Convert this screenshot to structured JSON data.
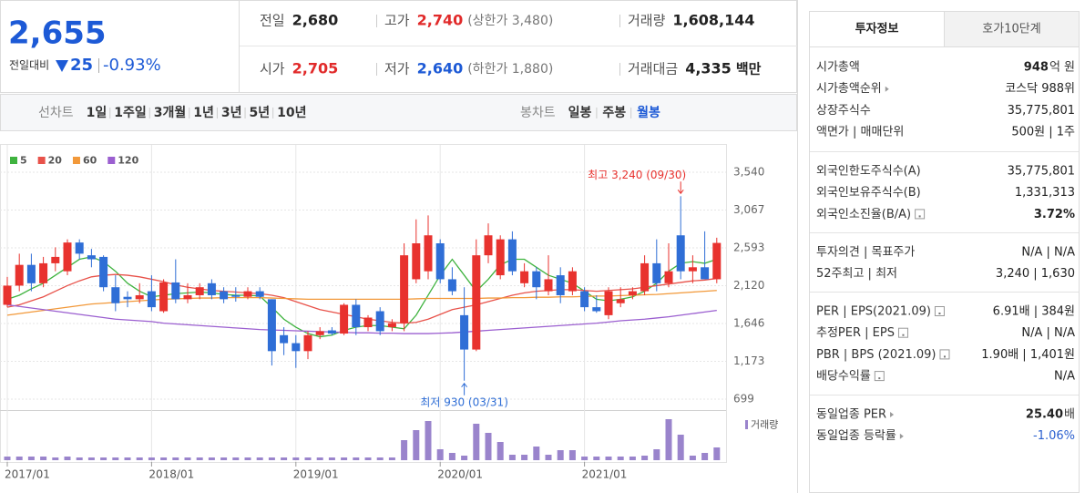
{
  "header": {
    "price": "2,655",
    "change_label": "전일대비",
    "change": "25",
    "change_rate": "-0.93%",
    "stats": [
      [
        {
          "label": "전일",
          "value": "2,680"
        },
        {
          "label": "고가",
          "value": "2,740",
          "sub": "(상한가 3,480)",
          "color": "#e12a2a"
        },
        {
          "label": "거래량",
          "value": "1,608,144"
        }
      ],
      [
        {
          "label": "시가",
          "value": "2,705",
          "color": "#e12a2a"
        },
        {
          "label": "저가",
          "value": "2,640",
          "sub": "(하한가 1,880)",
          "color": "#1d5ad6"
        },
        {
          "label": "거래대금",
          "value": "4,335",
          "unit": "백만"
        }
      ]
    ]
  },
  "toolbar": {
    "line_label": "선차트",
    "line_options": [
      "1일",
      "1주일",
      "3개월",
      "1년",
      "3년",
      "5년",
      "10년"
    ],
    "candle_label": "봉차트",
    "candle_options": [
      "일봉",
      "주봉",
      "월봉"
    ],
    "candle_active": 2
  },
  "chart_data": {
    "type": "candlestick",
    "x": [
      "2017/01",
      null,
      null,
      null,
      null,
      null,
      null,
      null,
      null,
      null,
      null,
      null,
      "2018/01",
      null,
      null,
      null,
      null,
      null,
      null,
      null,
      null,
      null,
      null,
      null,
      "2019/01",
      null,
      null,
      null,
      null,
      null,
      null,
      null,
      null,
      null,
      null,
      null,
      "2020/01",
      null,
      null,
      null,
      null,
      null,
      null,
      null,
      null,
      null,
      null,
      null,
      "2021/01",
      null,
      null,
      null,
      null,
      null,
      null,
      null,
      null,
      null,
      null,
      null
    ],
    "open": [
      1880,
      2120,
      2380,
      2150,
      2400,
      2300,
      2660,
      2500,
      2480,
      2100,
      1980,
      1950,
      2050,
      1800,
      2160,
      1950,
      2000,
      2150,
      2050,
      2000,
      1980,
      2050,
      1950,
      1500,
      1400,
      1300,
      1500,
      1560,
      1520,
      1880,
      1600,
      1800,
      1600,
      1650,
      2200,
      2300,
      2650,
      2200,
      1750,
      1320,
      2500,
      2250,
      2700,
      2150,
      2300,
      2050,
      2250,
      2050,
      2050,
      1850,
      1750,
      1900,
      2000,
      2050,
      2400,
      2150,
      2750,
      2300,
      2350,
      2200
    ],
    "high": [
      2230,
      2520,
      2520,
      2480,
      2600,
      2700,
      2700,
      2580,
      2500,
      2250,
      2050,
      2150,
      2250,
      2200,
      2450,
      2150,
      2150,
      2200,
      2100,
      2100,
      2100,
      2100,
      1950,
      1600,
      1500,
      1550,
      1600,
      1600,
      1900,
      1950,
      1750,
      1850,
      1700,
      2650,
      2950,
      3000,
      2700,
      2350,
      2100,
      2700,
      2900,
      2750,
      2800,
      2400,
      2350,
      2500,
      2350,
      2350,
      2100,
      2000,
      2100,
      2100,
      2100,
      2500,
      2700,
      2650,
      3240,
      2500,
      2800,
      2720
    ],
    "low": [
      1850,
      2050,
      2050,
      2100,
      2300,
      2250,
      2450,
      2350,
      2050,
      1800,
      1850,
      1900,
      1800,
      1780,
      1900,
      1900,
      1950,
      1950,
      1900,
      1920,
      1950,
      1950,
      1120,
      1250,
      1090,
      1200,
      1450,
      1500,
      1500,
      1500,
      1550,
      1500,
      1550,
      1550,
      2150,
      2200,
      2150,
      2000,
      930,
      1300,
      2400,
      2200,
      2250,
      2100,
      1950,
      2000,
      1900,
      2000,
      1800,
      1780,
      1700,
      1850,
      1950,
      2000,
      2050,
      2100,
      2200,
      2150,
      2200,
      2150
    ],
    "close": [
      2120,
      2380,
      2150,
      2400,
      2480,
      2660,
      2520,
      2450,
      2100,
      1900,
      1950,
      2000,
      1850,
      2160,
      1950,
      2000,
      2100,
      2000,
      1950,
      1980,
      2050,
      1980,
      1300,
      1400,
      1300,
      1500,
      1550,
      1520,
      1880,
      1600,
      1720,
      1550,
      1650,
      2500,
      2650,
      2750,
      2200,
      2050,
      1320,
      2500,
      2750,
      2700,
      2300,
      2300,
      2100,
      2200,
      2000,
      2300,
      1850,
      1800,
      2050,
      1950,
      2050,
      2400,
      2150,
      2300,
      2300,
      2350,
      2200,
      2655
    ],
    "up_color": "#e8322e",
    "down_color": "#2f6ed6",
    "series": [
      {
        "name": "5",
        "color": "#3fb33f",
        "values": [
          1950,
          2000,
          2080,
          2150,
          2250,
          2350,
          2450,
          2480,
          2420,
          2300,
          2150,
          2050,
          1980,
          2000,
          2020,
          2030,
          2040,
          2030,
          2010,
          2000,
          2000,
          1990,
          1850,
          1700,
          1600,
          1520,
          1480,
          1500,
          1560,
          1600,
          1620,
          1620,
          1600,
          1580,
          1750,
          2000,
          2250,
          2450,
          2250,
          2050,
          2200,
          2380,
          2450,
          2450,
          2350,
          2250,
          2200,
          2150,
          2050,
          1950,
          1930,
          1950,
          1980,
          2050,
          2150,
          2300,
          2400,
          2420,
          2400,
          2450
        ]
      },
      {
        "name": "20",
        "color": "#e8524a",
        "values": [
          1850,
          1880,
          1930,
          1980,
          2050,
          2120,
          2180,
          2230,
          2250,
          2260,
          2250,
          2230,
          2200,
          2170,
          2130,
          2100,
          2080,
          2060,
          2050,
          2040,
          2030,
          2020,
          2000,
          1970,
          1920,
          1870,
          1820,
          1790,
          1760,
          1730,
          1700,
          1680,
          1660,
          1650,
          1660,
          1700,
          1760,
          1820,
          1850,
          1880,
          1920,
          1960,
          2000,
          2030,
          2050,
          2060,
          2070,
          2070,
          2060,
          2050,
          2060,
          2070,
          2080,
          2100,
          2120,
          2140,
          2160,
          2180,
          2190,
          2210
        ]
      },
      {
        "name": "60",
        "color": "#f2993a",
        "values": [
          1750,
          1770,
          1790,
          1810,
          1830,
          1850,
          1870,
          1890,
          1900,
          1910,
          1920,
          1930,
          1940,
          1950,
          1955,
          1960,
          1965,
          1965,
          1970,
          1970,
          1970,
          1970,
          1965,
          1960,
          1955,
          1950,
          1950,
          1950,
          1950,
          1950,
          1950,
          1950,
          1950,
          1950,
          1955,
          1960,
          1960,
          1960,
          1960,
          1960,
          1965,
          1965,
          1970,
          1970,
          1975,
          1975,
          1980,
          1980,
          1985,
          1990,
          1990,
          1995,
          2000,
          2005,
          2010,
          2020,
          2030,
          2040,
          2050,
          2060
        ]
      },
      {
        "name": "120",
        "color": "#9b5fd0",
        "values": [
          1880,
          1860,
          1840,
          1820,
          1800,
          1780,
          1760,
          1740,
          1720,
          1700,
          1690,
          1680,
          1670,
          1650,
          1640,
          1630,
          1620,
          1610,
          1600,
          1590,
          1580,
          1570,
          1565,
          1560,
          1555,
          1550,
          1545,
          1540,
          1535,
          1530,
          1530,
          1525,
          1525,
          1520,
          1520,
          1520,
          1525,
          1530,
          1540,
          1550,
          1560,
          1570,
          1580,
          1590,
          1600,
          1610,
          1620,
          1630,
          1640,
          1650,
          1665,
          1680,
          1690,
          1700,
          1715,
          1730,
          1750,
          1770,
          1790,
          1810
        ]
      }
    ],
    "ylim": [
      699,
      3540
    ],
    "yticks": [
      {
        "value": 699,
        "label": "699"
      },
      {
        "value": 1173,
        "label": "1,173"
      },
      {
        "value": 1646,
        "label": "1,646"
      },
      {
        "value": 2120,
        "label": "2,120"
      },
      {
        "value": 2593,
        "label": "2,593"
      },
      {
        "value": 3067,
        "label": "3,067"
      },
      {
        "value": 3540,
        "label": "3,540"
      }
    ],
    "grid": true,
    "high_label": {
      "text": "최고 3,240 (09/30)",
      "value": 3240,
      "color": "#e8322e"
    },
    "low_label": {
      "text": "최저 930 (03/31)",
      "value": 930,
      "color": "#2f6ed6"
    },
    "volume": {
      "name": "거래량",
      "color": "#9a84cc",
      "values": [
        4,
        4,
        4,
        4,
        3,
        4,
        3,
        3,
        3,
        3,
        3,
        3,
        3,
        3,
        3,
        3,
        3,
        3,
        3,
        3,
        3,
        3,
        3,
        3,
        3,
        3,
        3,
        3,
        3,
        3,
        3,
        3,
        3,
        22,
        33,
        43,
        12,
        8,
        5,
        40,
        30,
        20,
        6,
        6,
        15,
        6,
        11,
        11,
        4,
        4,
        4,
        4,
        4,
        5,
        12,
        45,
        28,
        5,
        8,
        14
      ]
    }
  },
  "sidebar": {
    "tabs": [
      "투자정보",
      "호가10단계"
    ],
    "active_tab": 0,
    "groups": [
      [
        {
          "label": "시가총액",
          "value": "948",
          "unit": "억 원",
          "bold": true
        },
        {
          "label": "시가총액순위",
          "link": true,
          "value": "코스닥 988위"
        },
        {
          "label": "상장주식수",
          "value": "35,775,801"
        },
        {
          "label": "액면가 | 매매단위",
          "value": "500원 | 1주"
        }
      ],
      [
        {
          "label": "외국인한도주식수(A)",
          "value": "35,775,801"
        },
        {
          "label": "외국인보유주식수(B)",
          "value": "1,331,313"
        },
        {
          "label": "외국인소진율(B/A)",
          "help": true,
          "value": "3.72%",
          "bold": true
        }
      ],
      [
        {
          "label": "투자의견 | 목표주가",
          "value": "N/A | N/A"
        },
        {
          "label": "52주최고 | 최저",
          "value": "3,240 | 1,630"
        }
      ],
      [
        {
          "label": "PER | EPS(2021.09)",
          "help": true,
          "value": "6.91배 | 384원"
        },
        {
          "label": "추정PER | EPS",
          "help": true,
          "value": "N/A | N/A"
        },
        {
          "label": "PBR | BPS (2021.09)",
          "help": true,
          "value": "1.90배 | 1,401원"
        },
        {
          "label": "배당수익률",
          "help": true,
          "value": "N/A"
        }
      ],
      [
        {
          "label": "동일업종 PER",
          "link": true,
          "value": "25.40",
          "unit": "배",
          "bold": true
        },
        {
          "label": "동일업종 등락률",
          "link": true,
          "value": "-1.06%",
          "color": "#2a5fcf"
        }
      ]
    ]
  }
}
